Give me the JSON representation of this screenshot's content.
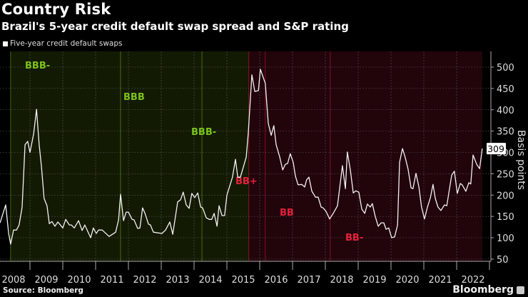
{
  "header": {
    "title": "Country Risk",
    "subtitle": "Brazil's 5-year credit default swap spread and S&P rating"
  },
  "footer": {
    "source": "Source: Bloomberg",
    "brand": "Bloomberg"
  },
  "colors": {
    "background": "#000000",
    "investment_grade_fill": "#131a04",
    "junk_fill": "#22040b",
    "investment_grade_label": "#7ac21a",
    "junk_label": "#e8203c",
    "line": "#f2f2f2"
  },
  "chart_data": {
    "type": "line",
    "title": "Country Risk",
    "subtitle": "Brazil's 5-year credit default swap spread and S&P rating",
    "ylabel": "Basis points",
    "xlabel": "",
    "ylim": [
      40,
      537
    ],
    "yticks": [
      50,
      100,
      150,
      200,
      250,
      300,
      350,
      400,
      450,
      500
    ],
    "xticks": [
      "2008",
      "2009",
      "2010",
      "2011",
      "2012",
      "2013",
      "2014",
      "2015",
      "2016",
      "2017",
      "2018",
      "2019",
      "2020",
      "2021",
      "2022"
    ],
    "grid": true,
    "legend_position": "top-left",
    "last_value_label": "309",
    "series": [
      {
        "name": "Five-year credit default swaps",
        "x": [
          2008.09,
          2008.26,
          2008.35,
          2008.41,
          2008.5,
          2008.59,
          2008.67,
          2008.76,
          2008.85,
          2008.93,
          2009.0,
          2009.11,
          2009.2,
          2009.28,
          2009.35,
          2009.43,
          2009.52,
          2009.59,
          2009.67,
          2009.76,
          2009.85,
          2010.0,
          2010.09,
          2010.2,
          2010.26,
          2010.35,
          2010.48,
          2010.59,
          2010.67,
          2010.85,
          2010.93,
          2011.02,
          2011.09,
          2011.2,
          2011.41,
          2011.61,
          2011.7,
          2011.76,
          2011.85,
          2011.93,
          2012.0,
          2012.11,
          2012.17,
          2012.28,
          2012.35,
          2012.43,
          2012.5,
          2012.61,
          2012.67,
          2012.76,
          2013.02,
          2013.13,
          2013.26,
          2013.35,
          2013.5,
          2013.59,
          2013.67,
          2013.76,
          2013.85,
          2013.93,
          2014.02,
          2014.11,
          2014.2,
          2014.26,
          2014.37,
          2014.46,
          2014.54,
          2014.61,
          2014.7,
          2014.76,
          2014.85,
          2014.93,
          2015.0,
          2015.17,
          2015.26,
          2015.33,
          2015.41,
          2015.59,
          2015.65,
          2015.76,
          2015.85,
          2015.96,
          2016.02,
          2016.17,
          2016.26,
          2016.35,
          2016.43,
          2016.5,
          2016.61,
          2016.7,
          2016.78,
          2016.85,
          2016.93,
          2017.02,
          2017.09,
          2017.17,
          2017.28,
          2017.37,
          2017.43,
          2017.5,
          2017.59,
          2017.7,
          2017.78,
          2017.87,
          2017.93,
          2018.02,
          2018.13,
          2018.24,
          2018.37,
          2018.52,
          2018.61,
          2018.67,
          2018.76,
          2018.85,
          2018.93,
          2019.02,
          2019.11,
          2019.2,
          2019.28,
          2019.37,
          2019.43,
          2019.52,
          2019.61,
          2019.7,
          2019.78,
          2019.85,
          2019.93,
          2020.02,
          2020.11,
          2020.2,
          2020.26,
          2020.35,
          2020.43,
          2020.52,
          2020.61,
          2020.67,
          2020.76,
          2020.85,
          2020.93,
          2021.02,
          2021.11,
          2021.2,
          2021.28,
          2021.35,
          2021.43,
          2021.52,
          2021.63,
          2021.7,
          2021.76,
          2021.85,
          2021.93,
          2022.02,
          2022.11,
          2022.17,
          2022.28,
          2022.37,
          2022.43,
          2022.5,
          2022.61,
          2022.7,
          2022.78
        ],
        "values": [
          135,
          177,
          110,
          85,
          118,
          118,
          130,
          172,
          318,
          326,
          300,
          343,
          401,
          318,
          267,
          192,
          175,
          133,
          138,
          127,
          137,
          123,
          143,
          130,
          130,
          123,
          140,
          117,
          130,
          100,
          123,
          110,
          118,
          118,
          103,
          113,
          142,
          202,
          140,
          160,
          160,
          143,
          142,
          122,
          123,
          170,
          158,
          132,
          130,
          113,
          110,
          118,
          137,
          108,
          184,
          189,
          207,
          177,
          169,
          204,
          194,
          205,
          172,
          170,
          147,
          143,
          143,
          157,
          127,
          175,
          152,
          152,
          200,
          242,
          284,
          242,
          242,
          289,
          344,
          482,
          443,
          445,
          495,
          462,
          368,
          340,
          363,
          318,
          289,
          259,
          272,
          274,
          297,
          277,
          244,
          224,
          225,
          219,
          236,
          242,
          209,
          195,
          195,
          172,
          170,
          162,
          144,
          157,
          175,
          269,
          215,
          301,
          259,
          205,
          210,
          207,
          167,
          157,
          179,
          172,
          180,
          150,
          127,
          135,
          135,
          120,
          123,
          100,
          102,
          130,
          277,
          309,
          289,
          261,
          217,
          215,
          251,
          219,
          172,
          144,
          172,
          194,
          225,
          192,
          172,
          164,
          177,
          175,
          205,
          247,
          256,
          204,
          227,
          224,
          209,
          229,
          226,
          294,
          272,
          262,
          309
        ]
      }
    ],
    "ratings": [
      {
        "label": "BBB-",
        "date": 2008.41,
        "grade": "investment"
      },
      {
        "label": "BBB",
        "date": 2011.76,
        "grade": "investment"
      },
      {
        "label": "BBB-",
        "date": 2014.24,
        "grade": "investment"
      },
      {
        "label": "BB+",
        "date": 2015.67,
        "grade": "junk"
      },
      {
        "label": "BB",
        "date": 2016.17,
        "grade": "junk"
      },
      {
        "label": "BB-",
        "date": 2018.15,
        "grade": "junk"
      }
    ]
  }
}
